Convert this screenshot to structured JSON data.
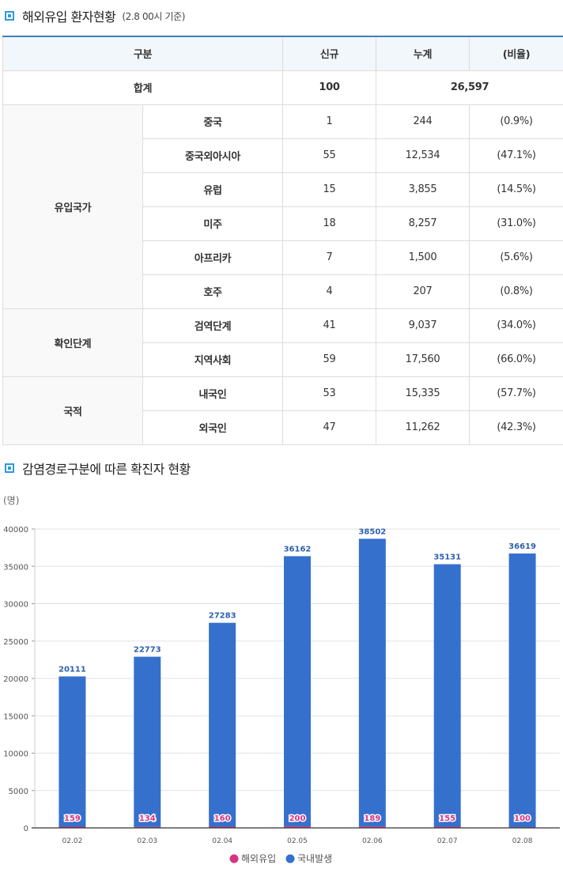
{
  "section1": {
    "title": "해외유입 환자현황",
    "subtitle": "(2.8 00시 기준)"
  },
  "table": {
    "headers": [
      "구분",
      "신규",
      "누계",
      "(비율)"
    ],
    "total": {
      "label": "합계",
      "new": "100",
      "cumulative": "26,597"
    },
    "groups": [
      {
        "label": "유입국가",
        "rows": [
          {
            "label": "중국",
            "new": "1",
            "cumulative": "244",
            "ratio": "(0.9%)"
          },
          {
            "label": "중국외아시아",
            "new": "55",
            "cumulative": "12,534",
            "ratio": "(47.1%)"
          },
          {
            "label": "유럽",
            "new": "15",
            "cumulative": "3,855",
            "ratio": "(14.5%)"
          },
          {
            "label": "미주",
            "new": "18",
            "cumulative": "8,257",
            "ratio": "(31.0%)"
          },
          {
            "label": "아프리카",
            "new": "7",
            "cumulative": "1,500",
            "ratio": "(5.6%)"
          },
          {
            "label": "호주",
            "new": "4",
            "cumulative": "207",
            "ratio": "(0.8%)"
          }
        ]
      },
      {
        "label": "확인단계",
        "rows": [
          {
            "label": "검역단계",
            "new": "41",
            "cumulative": "9,037",
            "ratio": "(34.0%)"
          },
          {
            "label": "지역사회",
            "new": "59",
            "cumulative": "17,560",
            "ratio": "(66.0%)"
          }
        ]
      },
      {
        "label": "국적",
        "rows": [
          {
            "label": "내국인",
            "new": "53",
            "cumulative": "15,335",
            "ratio": "(57.7%)"
          },
          {
            "label": "외국인",
            "new": "47",
            "cumulative": "11,262",
            "ratio": "(42.3%)"
          }
        ]
      }
    ]
  },
  "section2": {
    "title": "감염경로구분에 따른 확진자 현황"
  },
  "chart_data": {
    "type": "bar",
    "stacked": true,
    "categories": [
      "02.02",
      "02.03",
      "02.04",
      "02.05",
      "02.06",
      "02.07",
      "02.08"
    ],
    "series": [
      {
        "name": "해외유입",
        "values": [
          159,
          134,
          160,
          200,
          189,
          155,
          100
        ],
        "color": "#d63384"
      },
      {
        "name": "국내발생",
        "values": [
          20111,
          22773,
          27283,
          36162,
          38502,
          35131,
          36619
        ],
        "color": "#3570cc"
      }
    ],
    "ylabel": "(명)",
    "ylim": [
      0,
      40000
    ],
    "yticks": [
      0,
      5000,
      10000,
      15000,
      20000,
      25000,
      30000,
      35000,
      40000
    ],
    "grid": true,
    "legend": "bottom-center"
  }
}
